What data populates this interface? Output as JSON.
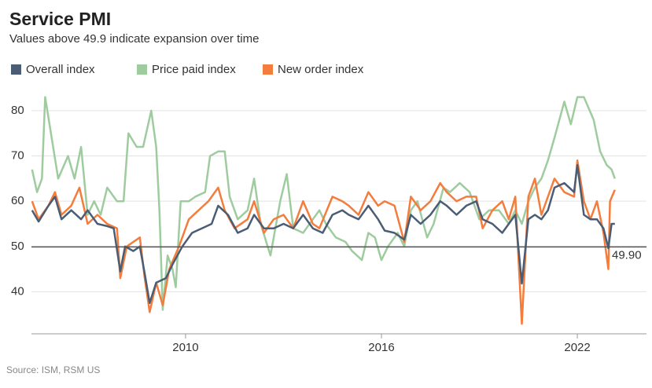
{
  "chart_data": {
    "type": "line",
    "title": "Service PMI",
    "subtitle": "Values above 49.9 indicate expansion over time",
    "source": "Source: ISM, RSM US",
    "xlim": [
      2005.28,
      2023.95
    ],
    "xticks": [
      2010,
      2016,
      2022
    ],
    "ylim": [
      30.7,
      84.5
    ],
    "yticks": [
      40,
      50,
      60,
      70,
      80
    ],
    "grid": true,
    "reference_line": {
      "value": 49.9,
      "label": "49.90"
    },
    "series": [
      {
        "name": "Overall index",
        "color": "#4a5d75",
        "x": [
          2005.3,
          2005.5,
          2005.8,
          2006.0,
          2006.2,
          2006.5,
          2006.8,
          2007.0,
          2007.3,
          2007.6,
          2007.8,
          2008.0,
          2008.15,
          2008.4,
          2008.6,
          2008.75,
          2008.9,
          2009.1,
          2009.4,
          2009.6,
          2009.9,
          2010.2,
          2010.5,
          2010.8,
          2011.0,
          2011.3,
          2011.6,
          2011.9,
          2012.1,
          2012.4,
          2012.7,
          2013.0,
          2013.3,
          2013.6,
          2013.9,
          2014.2,
          2014.5,
          2014.8,
          2015.0,
          2015.3,
          2015.6,
          2015.9,
          2016.1,
          2016.4,
          2016.7,
          2016.9,
          2017.2,
          2017.5,
          2017.8,
          2018.0,
          2018.3,
          2018.6,
          2018.9,
          2019.1,
          2019.4,
          2019.7,
          2019.9,
          2020.1,
          2020.3,
          2020.5,
          2020.7,
          2020.9,
          2021.1,
          2021.3,
          2021.6,
          2021.9,
          2022.0,
          2022.2,
          2022.4,
          2022.6,
          2022.8,
          2022.95,
          2023.05,
          2023.15
        ],
        "values": [
          58,
          55.5,
          59,
          61,
          56,
          58,
          56,
          58,
          55,
          54.5,
          54,
          44.5,
          50,
          49,
          50,
          44,
          37.5,
          42,
          43,
          46,
          50,
          53,
          54,
          55,
          59,
          57,
          53,
          54,
          57,
          54,
          54,
          55,
          54,
          57,
          54,
          53,
          57,
          58,
          57,
          56,
          59,
          56,
          53.5,
          53,
          51.5,
          57,
          55,
          57,
          60,
          59,
          57,
          59,
          60,
          56,
          55,
          53,
          55,
          57,
          41.8,
          56,
          57,
          56,
          58,
          63,
          64,
          62,
          68,
          57,
          56,
          56,
          54,
          49.6,
          55,
          55
        ]
      },
      {
        "name": "Price paid index",
        "color": "#9fcc9f",
        "x": [
          2005.3,
          2005.45,
          2005.6,
          2005.7,
          2005.9,
          2006.1,
          2006.4,
          2006.6,
          2006.8,
          2007.0,
          2007.2,
          2007.4,
          2007.6,
          2007.9,
          2008.1,
          2008.25,
          2008.5,
          2008.7,
          2008.95,
          2009.1,
          2009.2,
          2009.3,
          2009.45,
          2009.6,
          2009.7,
          2009.85,
          2010.1,
          2010.3,
          2010.6,
          2010.75,
          2011.0,
          2011.2,
          2011.35,
          2011.6,
          2011.9,
          2012.1,
          2012.3,
          2012.6,
          2012.9,
          2013.1,
          2013.3,
          2013.6,
          2013.9,
          2014.1,
          2014.3,
          2014.6,
          2014.9,
          2015.1,
          2015.4,
          2015.6,
          2015.8,
          2016.0,
          2016.2,
          2016.5,
          2016.7,
          2016.9,
          2017.1,
          2017.4,
          2017.6,
          2017.9,
          2018.1,
          2018.4,
          2018.7,
          2019.0,
          2019.3,
          2019.6,
          2019.9,
          2020.1,
          2020.3,
          2020.5,
          2020.7,
          2020.9,
          2021.1,
          2021.3,
          2021.6,
          2021.8,
          2022.0,
          2022.2,
          2022.5,
          2022.7,
          2022.9,
          2023.05,
          2023.15
        ],
        "values": [
          67,
          62,
          65,
          83,
          74,
          65,
          70,
          65,
          72,
          57,
          60,
          57,
          63,
          60,
          60,
          75,
          72,
          72,
          80,
          72,
          58,
          36,
          48,
          45,
          41,
          60,
          60,
          61,
          62,
          70,
          71,
          71,
          61,
          56,
          58,
          65,
          55,
          48,
          60,
          66,
          54,
          53,
          56,
          58,
          55,
          52,
          51,
          49,
          47,
          53,
          52,
          47,
          50,
          53,
          50,
          58,
          60,
          52,
          55,
          63,
          62,
          64,
          62,
          56,
          58,
          58,
          55,
          58,
          55,
          60,
          63,
          65,
          69,
          74,
          82,
          77,
          83,
          83,
          78,
          71,
          68,
          67,
          65
        ]
      },
      {
        "name": "New order index",
        "color": "#f47c3c",
        "x": [
          2005.3,
          2005.5,
          2005.8,
          2006.0,
          2006.2,
          2006.5,
          2006.75,
          2007.0,
          2007.3,
          2007.6,
          2007.9,
          2008.0,
          2008.2,
          2008.4,
          2008.6,
          2008.75,
          2008.9,
          2009.1,
          2009.3,
          2009.5,
          2009.8,
          2010.1,
          2010.4,
          2010.7,
          2011.0,
          2011.2,
          2011.5,
          2011.9,
          2012.1,
          2012.4,
          2012.7,
          2013.0,
          2013.3,
          2013.6,
          2013.9,
          2014.1,
          2014.5,
          2014.8,
          2015.0,
          2015.3,
          2015.6,
          2015.9,
          2016.1,
          2016.4,
          2016.7,
          2016.9,
          2017.2,
          2017.5,
          2017.8,
          2018.0,
          2018.3,
          2018.6,
          2018.9,
          2019.1,
          2019.4,
          2019.7,
          2019.9,
          2020.1,
          2020.3,
          2020.5,
          2020.7,
          2020.9,
          2021.1,
          2021.3,
          2021.6,
          2021.9,
          2022.0,
          2022.2,
          2022.4,
          2022.6,
          2022.8,
          2022.95,
          2023.0,
          2023.15
        ],
        "values": [
          60,
          56,
          59,
          62,
          57,
          59,
          63,
          55,
          57,
          55,
          54,
          43,
          50,
          51,
          52,
          43,
          35.5,
          42,
          37,
          45,
          50,
          56,
          58,
          60,
          63,
          58,
          54,
          56,
          60,
          53,
          56,
          57,
          54,
          60,
          55,
          54,
          61,
          60,
          59,
          57,
          62,
          59,
          60,
          59,
          51,
          61,
          58,
          60,
          64,
          62,
          60,
          61,
          61,
          54,
          58,
          60,
          56,
          61,
          32.9,
          61,
          65,
          57,
          61,
          65,
          62,
          61,
          69,
          60,
          56,
          60,
          53,
          45,
          60,
          62.5
        ]
      }
    ]
  }
}
